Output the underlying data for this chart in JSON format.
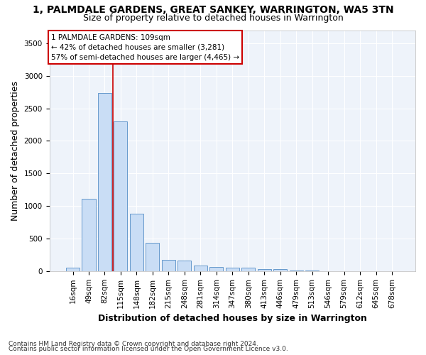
{
  "title": "1, PALMDALE GARDENS, GREAT SANKEY, WARRINGTON, WA5 3TN",
  "subtitle": "Size of property relative to detached houses in Warrington",
  "xlabel": "Distribution of detached houses by size in Warrington",
  "ylabel": "Number of detached properties",
  "categories": [
    "16sqm",
    "49sqm",
    "82sqm",
    "115sqm",
    "148sqm",
    "182sqm",
    "215sqm",
    "248sqm",
    "281sqm",
    "314sqm",
    "347sqm",
    "380sqm",
    "413sqm",
    "446sqm",
    "479sqm",
    "513sqm",
    "546sqm",
    "579sqm",
    "612sqm",
    "645sqm",
    "678sqm"
  ],
  "values": [
    55,
    1110,
    2740,
    2300,
    880,
    430,
    175,
    165,
    90,
    65,
    50,
    50,
    35,
    30,
    5,
    5,
    0,
    0,
    0,
    0,
    0
  ],
  "bar_color": "#c9ddf5",
  "bar_edge_color": "#6699cc",
  "vline_x_pos": 2.5,
  "vline_color": "#cc0000",
  "annotation_line1": "1 PALMDALE GARDENS: 109sqm",
  "annotation_line2": "← 42% of detached houses are smaller (3,281)",
  "annotation_line3": "57% of semi-detached houses are larger (4,465) →",
  "annotation_box_color": "#ffffff",
  "annotation_box_edge_color": "#cc0000",
  "ylim": [
    0,
    3700
  ],
  "yticks": [
    0,
    500,
    1000,
    1500,
    2000,
    2500,
    3000,
    3500
  ],
  "footnote1": "Contains HM Land Registry data © Crown copyright and database right 2024.",
  "footnote2": "Contains public sector information licensed under the Open Government Licence v3.0.",
  "bg_color": "#ffffff",
  "plot_bg_color": "#eef3fa",
  "grid_color": "#ffffff",
  "title_fontsize": 10,
  "subtitle_fontsize": 9,
  "axis_label_fontsize": 9,
  "tick_fontsize": 7.5,
  "footnote_fontsize": 6.5
}
